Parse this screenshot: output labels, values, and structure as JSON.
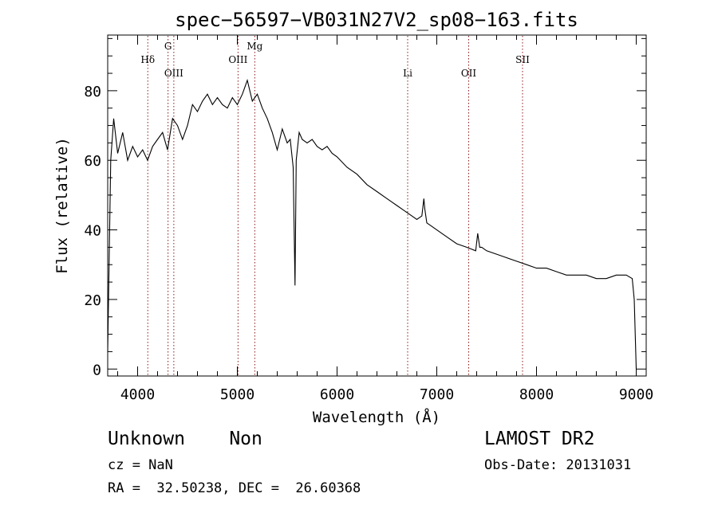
{
  "chart_data": {
    "type": "line",
    "title": "spec−56597−VB031N27V2_sp08−163.fits",
    "xlabel": "Wavelength (Å)",
    "ylabel": "Flux (relative)",
    "xlim": [
      3700,
      9100
    ],
    "ylim": [
      -2,
      96
    ],
    "x_ticks": [
      4000,
      5000,
      6000,
      7000,
      8000,
      9000
    ],
    "y_ticks": [
      0,
      20,
      40,
      60,
      80
    ],
    "grid": false,
    "line_color": "#000000",
    "marker_color": "#8b1a1a",
    "line_markers": [
      {
        "label": "Hδ",
        "x": 4102,
        "level": 1
      },
      {
        "label": "G",
        "x": 4305,
        "level": 0
      },
      {
        "label": "OIII",
        "x": 4363,
        "level": 2
      },
      {
        "label": "OIII",
        "x": 5007,
        "level": 1
      },
      {
        "label": "Mg",
        "x": 5175,
        "level": 0
      },
      {
        "label": "Li",
        "x": 6708,
        "level": 2
      },
      {
        "label": "OII",
        "x": 7320,
        "level": 2
      },
      {
        "label": "SII",
        "x": 7860,
        "level": 1
      }
    ],
    "x": [
      3700,
      3730,
      3760,
      3800,
      3850,
      3900,
      3950,
      4000,
      4050,
      4100,
      4150,
      4200,
      4250,
      4300,
      4350,
      4400,
      4450,
      4500,
      4550,
      4600,
      4650,
      4700,
      4750,
      4800,
      4850,
      4900,
      4950,
      5000,
      5050,
      5100,
      5150,
      5200,
      5250,
      5300,
      5350,
      5400,
      5450,
      5500,
      5530,
      5560,
      5578,
      5590,
      5620,
      5650,
      5700,
      5750,
      5800,
      5850,
      5900,
      5950,
      6000,
      6100,
      6200,
      6300,
      6400,
      6500,
      6600,
      6700,
      6800,
      6850,
      6870,
      6880,
      6900,
      6950,
      7000,
      7100,
      7200,
      7300,
      7390,
      7410,
      7430,
      7450,
      7500,
      7600,
      7700,
      7800,
      7900,
      8000,
      8100,
      8200,
      8300,
      8400,
      8500,
      8600,
      8700,
      8800,
      8900,
      8960,
      8980,
      9000
    ],
    "values": [
      5,
      60,
      72,
      62,
      68,
      60,
      64,
      61,
      63,
      60,
      64,
      66,
      68,
      63,
      72,
      70,
      66,
      70,
      76,
      74,
      77,
      79,
      76,
      78,
      76,
      75,
      78,
      76,
      79,
      83,
      77,
      79,
      75,
      72,
      68,
      63,
      69,
      65,
      66,
      58,
      24,
      60,
      68,
      66,
      65,
      66,
      64,
      63,
      64,
      62,
      61,
      58,
      56,
      53,
      51,
      49,
      47,
      45,
      43,
      44,
      49,
      46,
      42,
      41,
      40,
      38,
      36,
      35,
      34,
      39,
      35,
      35,
      34,
      33,
      32,
      31,
      30,
      29,
      29,
      28,
      27,
      27,
      27,
      26,
      26,
      27,
      27,
      26,
      20,
      0
    ]
  },
  "info": {
    "class_line": "Unknown    Non",
    "survey": "LAMOST DR2",
    "cz": "cz = NaN",
    "obs_date": "Obs-Date: 20131031",
    "coords": "RA =  32.50238, DEC =  26.60368"
  }
}
